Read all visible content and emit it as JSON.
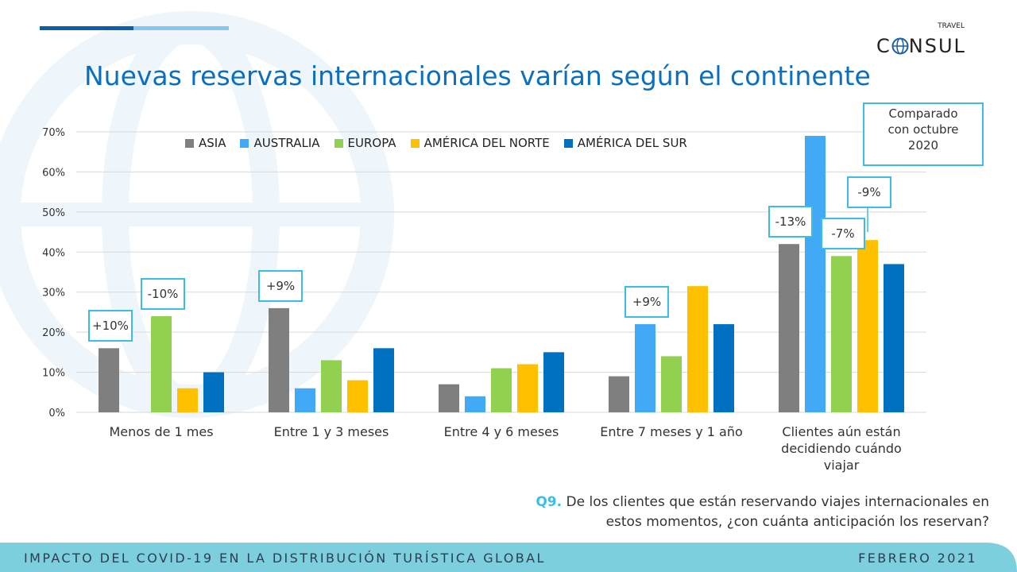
{
  "title": "Nuevas reservas internacionales varían según el continente",
  "logo": {
    "top": "TRAVEL",
    "main": "CONSUL"
  },
  "comparison_note": [
    "Comparado",
    "con octubre",
    "2020"
  ],
  "question": {
    "number": "Q9.",
    "line1": "De los clientes que están reservando viajes internacionales en",
    "line2": "estos momentos, ¿con cuánta anticipación  los reservan?"
  },
  "footer": {
    "left": "IMPACTO DEL COVID-19 EN LA DISTRIBUCIÓN TURÍSTICA GLOBAL",
    "right": "FEBRERO 2021"
  },
  "colors": {
    "title": "#0b6fbf",
    "accent": "#3bbde4",
    "footer": "#7ecfdd"
  },
  "chart_data": {
    "type": "bar",
    "categories": [
      "Menos de 1 mes",
      "Entre 1 y 3 meses",
      "Entre 4 y 6 meses",
      "Entre 7 meses y 1 año",
      "Clientes aún están decidiendo cuándo viajar"
    ],
    "category_lines": [
      [
        "Menos de 1 mes"
      ],
      [
        "Entre 1 y 3 meses"
      ],
      [
        "Entre 4 y 6 meses"
      ],
      [
        "Entre 7 meses y 1 año"
      ],
      [
        "Clientes aún están",
        "decidiendo cuándo",
        "viajar"
      ]
    ],
    "series": [
      {
        "name": "ASIA",
        "color": "#7f7f7f",
        "values": [
          16,
          26,
          7,
          9,
          42
        ]
      },
      {
        "name": "AUSTRALIA",
        "color": "#41a9f5",
        "values": [
          0,
          6,
          4,
          22,
          69
        ]
      },
      {
        "name": "EUROPA",
        "color": "#92d050",
        "values": [
          24,
          13,
          11,
          14,
          39
        ]
      },
      {
        "name": "AMÉRICA DEL NORTE",
        "color": "#ffc000",
        "values": [
          6,
          8,
          12,
          31.5,
          43
        ]
      },
      {
        "name": "AMÉRICA DEL SUR",
        "color": "#0070c0",
        "values": [
          10,
          16,
          15,
          22,
          37
        ]
      }
    ],
    "ylim": [
      0,
      70
    ],
    "yticks": [
      0,
      10,
      20,
      30,
      40,
      50,
      60,
      70
    ],
    "ytick_labels": [
      "0%",
      "10%",
      "20%",
      "30%",
      "40%",
      "50%",
      "60%",
      "70%"
    ],
    "grid": true,
    "legend_position": "top",
    "annotations": [
      {
        "text": "+10%",
        "category": 0,
        "series": 0
      },
      {
        "text": "-10%",
        "category": 0,
        "series": 2
      },
      {
        "text": "+9%",
        "category": 1,
        "series": 0
      },
      {
        "text": "+9%",
        "category": 3,
        "series": 1
      },
      {
        "text": "-13%",
        "category": 4,
        "series": 0
      },
      {
        "text": "-7%",
        "category": 4,
        "series": 2
      },
      {
        "text": "-9%",
        "category": 4,
        "series": 3
      }
    ]
  }
}
